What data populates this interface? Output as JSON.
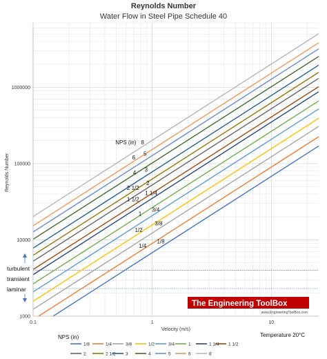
{
  "chart_data": {
    "type": "line",
    "title": "Reynolds Number",
    "subtitle": "Water Flow in Steel Pipe Schedule 40",
    "xlabel": "Velocity (m/s)",
    "ylabel": "Reynolds Number",
    "x_scale": "log",
    "y_scale": "log",
    "xlim": [
      0.1,
      25
    ],
    "ylim": [
      1000,
      7000000
    ],
    "x_ticks": [
      {
        "value": 0.1,
        "label": "0.1"
      },
      {
        "value": 1,
        "label": "1"
      },
      {
        "value": 10,
        "label": "10"
      }
    ],
    "y_ticks": [
      {
        "value": 1000,
        "label": "1000"
      },
      {
        "value": 10000,
        "label": "10000"
      },
      {
        "value": 100000,
        "label": "100000"
      },
      {
        "value": 1000000,
        "label": "1000000"
      }
    ],
    "grid": true,
    "legend_title": "NPS (in)",
    "legend_position": "bottom",
    "series": [
      {
        "name": "1/8",
        "color": "#4472c4",
        "x": [
          0.1,
          25
        ],
        "y": [
          680,
          170000
        ]
      },
      {
        "name": "1/4",
        "color": "#ed7d31",
        "x": [
          0.1,
          25
        ],
        "y": [
          900,
          225000
        ]
      },
      {
        "name": "3/8",
        "color": "#a5a5a5",
        "x": [
          0.1,
          25
        ],
        "y": [
          1230,
          307000
        ]
      },
      {
        "name": "1/2",
        "color": "#ffc000",
        "x": [
          0.1,
          25
        ],
        "y": [
          1570,
          392000
        ]
      },
      {
        "name": "3/4",
        "color": "#5b9bd5",
        "x": [
          0.1,
          25
        ],
        "y": [
          2080,
          520000
        ]
      },
      {
        "name": "1",
        "color": "#70ad47",
        "x": [
          0.1,
          25
        ],
        "y": [
          2650,
          662000
        ]
      },
      {
        "name": "1 1/4",
        "color": "#264478",
        "x": [
          0.1,
          25
        ],
        "y": [
          3500,
          875000
        ]
      },
      {
        "name": "1 1/2",
        "color": "#9e480e",
        "x": [
          0.1,
          25
        ],
        "y": [
          4090,
          1020000
        ]
      },
      {
        "name": "2",
        "color": "#636363",
        "x": [
          0.1,
          25
        ],
        "y": [
          5250,
          1310000
        ]
      },
      {
        "name": "2 1/2",
        "color": "#997300",
        "x": [
          0.1,
          25
        ],
        "y": [
          6280,
          1570000
        ]
      },
      {
        "name": "3",
        "color": "#255e91",
        "x": [
          0.1,
          25
        ],
        "y": [
          7790,
          1950000
        ]
      },
      {
        "name": "4",
        "color": "#43682b",
        "x": [
          0.1,
          25
        ],
        "y": [
          10200,
          2540000
        ]
      },
      {
        "name": "5",
        "color": "#698ed0",
        "x": [
          0.1,
          25
        ],
        "y": [
          12700,
          3190000
        ]
      },
      {
        "name": "6",
        "color": "#f1975a",
        "x": [
          0.1,
          25
        ],
        "y": [
          15300,
          3830000
        ]
      },
      {
        "name": "8",
        "color": "#b7b7b7",
        "x": [
          0.1,
          25
        ],
        "y": [
          20200,
          5040000
        ]
      }
    ],
    "reference_lines": [
      {
        "y": 4000,
        "label": "turbulent"
      },
      {
        "y": 2300,
        "label": "laminar"
      }
    ],
    "zone_labels": [
      "turbulent",
      "transient",
      "laminar"
    ],
    "annotations": [
      {
        "text": "NPS (in)",
        "x": 0.6,
        "y": 190000
      },
      {
        "text": "8",
        "x": 0.83,
        "y": 190000
      },
      {
        "text": "6",
        "x": 0.7,
        "y": 120000
      },
      {
        "text": "5",
        "x": 0.87,
        "y": 135000
      },
      {
        "text": "4",
        "x": 0.71,
        "y": 76000
      },
      {
        "text": "3",
        "x": 0.89,
        "y": 84000
      },
      {
        "text": "2 1/2",
        "x": 0.69,
        "y": 48000
      },
      {
        "text": "2",
        "x": 0.92,
        "y": 56000
      },
      {
        "text": "1 1/2",
        "x": 0.69,
        "y": 34000
      },
      {
        "text": "1 1/4",
        "x": 0.98,
        "y": 41000
      },
      {
        "text": "1",
        "x": 0.79,
        "y": 22000
      },
      {
        "text": "3/4",
        "x": 1.07,
        "y": 25000
      },
      {
        "text": "1/2",
        "x": 0.77,
        "y": 13500
      },
      {
        "text": "3/8",
        "x": 1.13,
        "y": 16500
      },
      {
        "text": "1/4",
        "x": 0.83,
        "y": 8400
      },
      {
        "text": "1/8",
        "x": 1.18,
        "y": 9600
      }
    ],
    "temperature_note": "Temperature 20°C"
  },
  "branding": {
    "logo_text": "The Engineering ToolBox",
    "site": "www.EngineeringToolBox.com",
    "logo_bg": "#c00000"
  }
}
